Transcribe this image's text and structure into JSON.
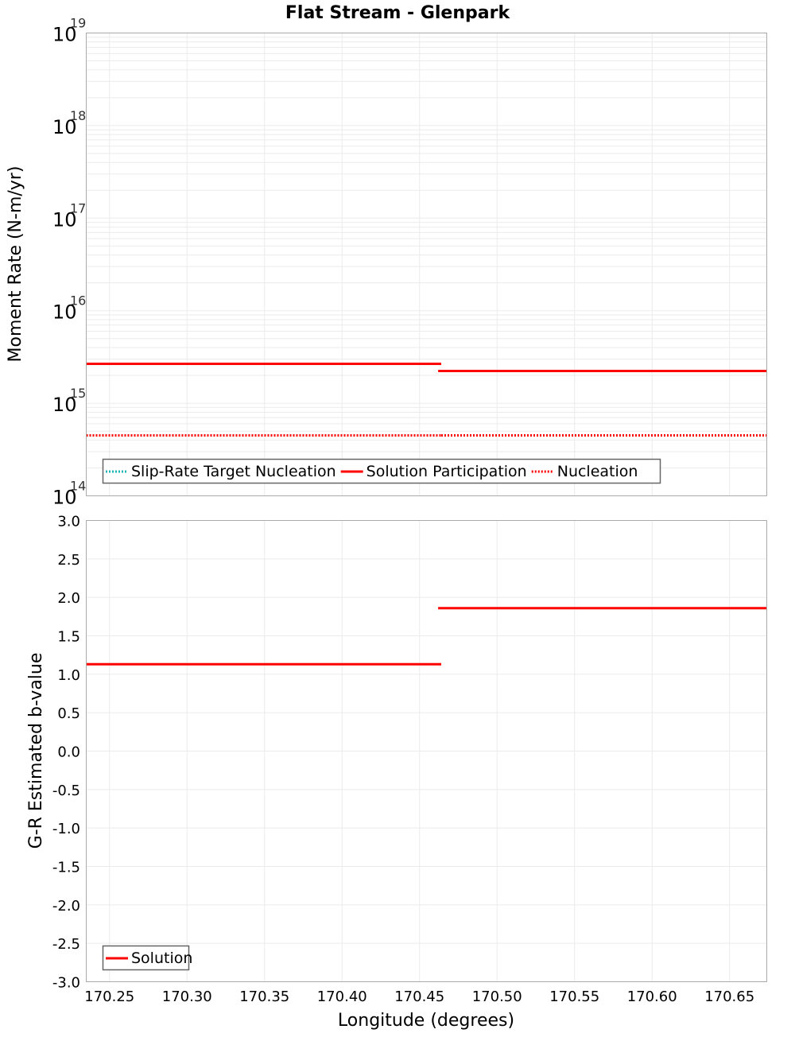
{
  "title": "Flat Stream - Glenpark",
  "colors": {
    "solution": "#ff0000",
    "target": "#20b5b5",
    "nucleation": "#ff0000",
    "grid": "#ebebeb",
    "frame": "#aaaaaa",
    "legend_border": "#666666"
  },
  "chart_data": [
    {
      "type": "line",
      "panel": "top",
      "title": "Flat Stream - Glenpark",
      "xlabel": "Longitude (degrees)",
      "ylabel": "Moment Rate (N-m/yr)",
      "yscale": "log",
      "ylim": [
        100000000000000.0,
        1e+19
      ],
      "xlim": [
        170.235,
        170.674
      ],
      "ytick_labels": [
        {
          "base": "10",
          "exp": "14",
          "value": 100000000000000.0
        },
        {
          "base": "10",
          "exp": "15",
          "value": 1000000000000000.0
        },
        {
          "base": "10",
          "exp": "16",
          "value": 1e+16
        },
        {
          "base": "10",
          "exp": "17",
          "value": 1e+17
        },
        {
          "base": "10",
          "exp": "18",
          "value": 1e+18
        },
        {
          "base": "10",
          "exp": "19",
          "value": 1e+19
        }
      ],
      "grid": true,
      "legend_position": "lower-left",
      "series": [
        {
          "name": "Slip-Rate Target Nucleation",
          "style": "dotted",
          "color": "#20b5b5",
          "x": [
            170.235,
            170.464,
            170.464,
            170.674
          ],
          "y": [
            450000000000000.0,
            450000000000000.0,
            450000000000000.0,
            450000000000000.0
          ]
        },
        {
          "name": "Solution Participation",
          "style": "solid",
          "color": "#ff0000",
          "x": [
            170.235,
            170.464,
            170.462,
            170.674
          ],
          "y": [
            2670000000000000.0,
            2670000000000000.0,
            2230000000000000.0,
            2230000000000000.0
          ]
        },
        {
          "name": "Nucleation",
          "style": "dotted",
          "color": "#ff0000",
          "x": [
            170.235,
            170.464,
            170.464,
            170.674
          ],
          "y": [
            450000000000000.0,
            450000000000000.0,
            450000000000000.0,
            450000000000000.0
          ]
        }
      ]
    },
    {
      "type": "line",
      "panel": "bottom",
      "xlabel": "Longitude (degrees)",
      "ylabel": "G-R Estimated b-value",
      "ylim": [
        -3.0,
        3.0
      ],
      "xlim": [
        170.235,
        170.674
      ],
      "yticks": [
        "3.0",
        "2.5",
        "2.0",
        "1.5",
        "1.0",
        "0.5",
        "0.0",
        "-0.5",
        "-1.0",
        "-1.5",
        "-2.0",
        "-2.5",
        "-3.0"
      ],
      "xticks": [
        "170.25",
        "170.30",
        "170.35",
        "170.40",
        "170.45",
        "170.50",
        "170.55",
        "170.60",
        "170.65"
      ],
      "grid": true,
      "legend_position": "lower-left",
      "series": [
        {
          "name": "Solution",
          "style": "solid",
          "color": "#ff0000",
          "x": [
            170.235,
            170.464,
            170.462,
            170.674
          ],
          "y": [
            1.13,
            1.13,
            1.86,
            1.86
          ]
        }
      ]
    }
  ]
}
